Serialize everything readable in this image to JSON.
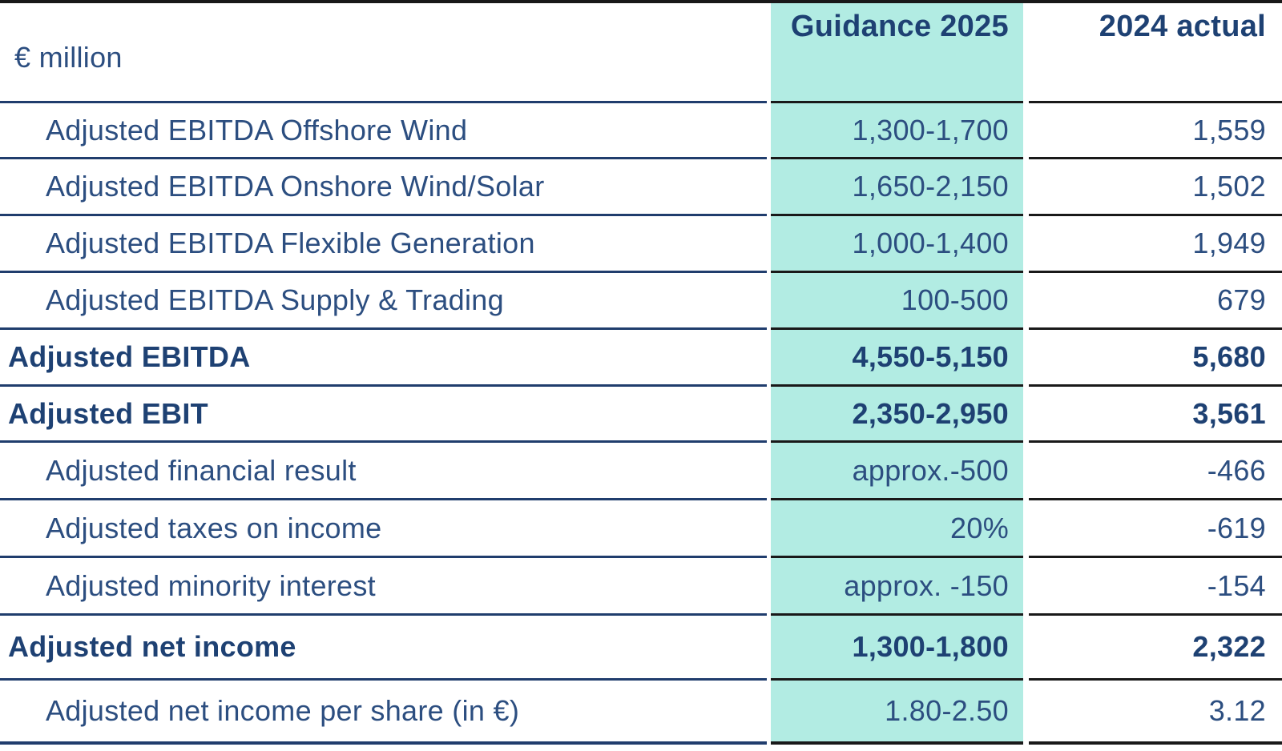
{
  "table": {
    "unit_label": "€ million",
    "columns": [
      {
        "key": "guidance",
        "label": "Guidance 2025",
        "highlighted": true
      },
      {
        "key": "actual",
        "label": "2024 actual",
        "highlighted": false
      }
    ],
    "rows": [
      {
        "label": "Adjusted EBITDA Offshore Wind",
        "guidance": "1,300-1,700",
        "actual": "1,559",
        "emphasis": false
      },
      {
        "label": "Adjusted EBITDA Onshore Wind/Solar",
        "guidance": "1,650-2,150",
        "actual": "1,502",
        "emphasis": false
      },
      {
        "label": "Adjusted EBITDA Flexible Generation",
        "guidance": "1,000-1,400",
        "actual": "1,949",
        "emphasis": false
      },
      {
        "label": "Adjusted EBITDA Supply & Trading",
        "guidance": "100-500",
        "actual": "679",
        "emphasis": false
      },
      {
        "label": "Adjusted EBITDA",
        "guidance": "4,550-5,150",
        "actual": "5,680",
        "emphasis": true
      },
      {
        "label": "Adjusted EBIT",
        "guidance": "2,350-2,950",
        "actual": "3,561",
        "emphasis": true
      },
      {
        "label": "Adjusted financial result",
        "guidance": "approx.-500",
        "actual": "-466",
        "emphasis": false
      },
      {
        "label": "Adjusted taxes on income",
        "guidance": "20%",
        "actual": "-619",
        "emphasis": false
      },
      {
        "label": "Adjusted minority interest",
        "guidance": "approx. -150",
        "actual": "-154",
        "emphasis": false
      },
      {
        "label": "Adjusted net income",
        "guidance": "1,300-1,800",
        "actual": "2,322",
        "emphasis": true
      },
      {
        "label": "Adjusted net income per share (in €)",
        "guidance": "1.80-2.50",
        "actual": "3.12",
        "emphasis": false
      }
    ]
  },
  "colors": {
    "bg-highlight": "#b2ece3",
    "text": "#2c4e80",
    "text-bold": "#1e4173",
    "border-navy": "#203d6d",
    "border-dark": "#191919"
  }
}
